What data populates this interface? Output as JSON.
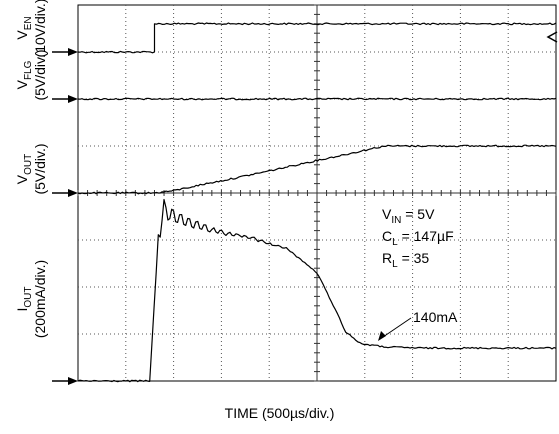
{
  "chart_data": {
    "type": "line",
    "title": "",
    "xlabel": "TIME (500µs/div.)",
    "x_unit": "ms",
    "xlim": [
      0,
      5
    ],
    "divisions": {
      "x": 10,
      "y": 8
    },
    "grid": true,
    "conditions": [
      {
        "base": "V",
        "sub": "IN",
        "rest": " = 5V"
      },
      {
        "base": "C",
        "sub": "L",
        "rest": " = 147µF"
      },
      {
        "base": "R",
        "sub": "L",
        "rest": " = 35"
      }
    ],
    "annotation": {
      "text": "140mA",
      "x": 2.9,
      "value": 140
    },
    "series": [
      {
        "key": "ven",
        "label_base": "V",
        "label_sub": "EN",
        "scale": "(10V/div.)",
        "unit": "V",
        "v_per_div": 10,
        "ground_div": 7,
        "x": [
          0,
          0.8,
          0.8,
          5
        ],
        "y": [
          0,
          0,
          6,
          6
        ]
      },
      {
        "key": "vflg",
        "label_base": "V",
        "label_sub": "FLG",
        "scale": "(5V/div.)",
        "unit": "V",
        "v_per_div": 5,
        "ground_div": 6,
        "x": [
          0,
          5
        ],
        "y": [
          0,
          0
        ]
      },
      {
        "key": "vout",
        "label_base": "V",
        "label_sub": "OUT",
        "scale": "(5V/div.)",
        "unit": "V",
        "v_per_div": 5,
        "ground_div": 4,
        "x": [
          0,
          0.8,
          1.0,
          1.3,
          1.6,
          2.0,
          2.4,
          2.8,
          3.2,
          5
        ],
        "y": [
          0,
          0,
          0.25,
          0.9,
          1.5,
          2.35,
          3.25,
          4.1,
          5,
          5
        ]
      },
      {
        "key": "iout",
        "label_base": "I",
        "label_sub": "OUT",
        "scale": "(200mA/div.)",
        "unit": "mA",
        "v_per_div": 200,
        "ground_div": 0,
        "x": [
          0,
          0.75,
          0.84,
          0.9,
          1.0,
          1.4,
          1.8,
          2.2,
          2.5,
          2.65,
          2.8,
          2.95,
          3.2,
          3.6,
          5
        ],
        "y": [
          0,
          0,
          620,
          730,
          700,
          640,
          610,
          560,
          460,
          340,
          210,
          160,
          145,
          140,
          140
        ]
      }
    ]
  }
}
